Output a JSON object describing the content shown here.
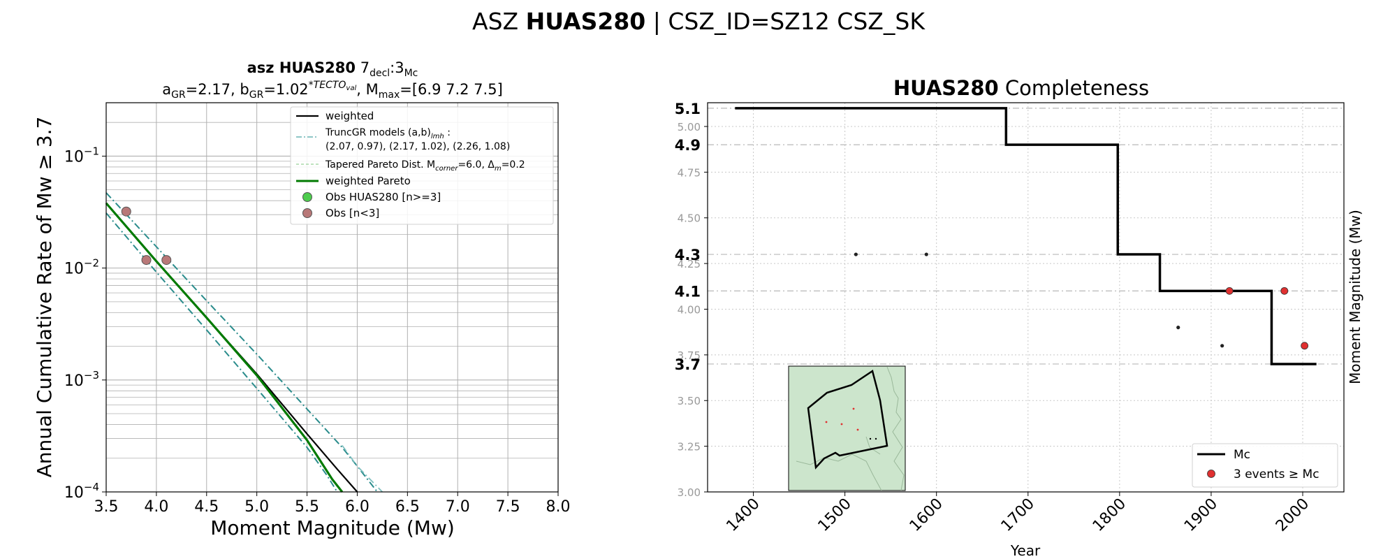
{
  "figure": {
    "suptitle_prefix": "ASZ ",
    "suptitle_bold": "HUAS280",
    "suptitle_suffix": " | CSZ_ID=SZ12 CSZ_SK"
  },
  "chart_data": [
    {
      "type": "line",
      "title_line1": {
        "bold": "asz HUAS280",
        "pre": "  7",
        "sub1": "decl",
        "mid": ":3",
        "sub2": "Mc"
      },
      "title_line2": {
        "a": "a",
        "a_sub": "GR",
        "a_val": "=2.17,  ",
        "b": "b",
        "b_sub": "GR",
        "b_val": "=1.02",
        "b_sup": "*TECTO",
        "b_supsub": "val",
        "m": ", M",
        "m_sub": "max",
        "m_val": "=[6.9 7.2 7.5]"
      },
      "xlabel": "Moment Magnitude (Mw)",
      "ylabel": "Annual Cumulative Rate of Mw  ≥  3.7",
      "xlim": [
        3.5,
        8.0
      ],
      "ylim": [
        0.0001,
        0.3
      ],
      "yscale": "log",
      "grid": true,
      "xticks": [
        "3.5",
        "4.0",
        "4.5",
        "5.0",
        "5.5",
        "6.0",
        "6.5",
        "7.0",
        "7.5",
        "8.0"
      ],
      "yticks": [
        {
          "base": "10",
          "exp": "−4",
          "value": 0.0001
        },
        {
          "base": "10",
          "exp": "−3",
          "value": 0.001
        },
        {
          "base": "10",
          "exp": "−2",
          "value": 0.01
        },
        {
          "base": "10",
          "exp": "−1",
          "value": 0.1
        }
      ],
      "legend": {
        "placement": "top-right",
        "weighted": "weighted",
        "trunc_line1": "TruncGR models (a,b)",
        "trunc_sub": "lmh",
        "trunc_line1_end": " :",
        "trunc_line2": " (2.07, 0.97), (2.17, 1.02), (2.26, 1.08)",
        "tapered_pre": "Tapered Pareto Dist. M",
        "tapered_sub": "corner",
        "tapered_mid": "=6.0, Δ",
        "tapered_sub2": "m",
        "tapered_end": "=0.2",
        "weighted_pareto": "weighted Pareto",
        "obs_good": "Obs HUAS280 [n>=3]",
        "obs_bad": "Obs [n<3]"
      },
      "colors": {
        "weighted": "#000000",
        "truncgr": "#2a8c8c",
        "truncgr_light": "#7fbfbf",
        "tapered": "#a8d8a8",
        "weighted_pareto": "#007a00",
        "obs_good": "#4dcc4d",
        "obs_bad": "#b87878"
      },
      "series": [
        {
          "name": "weighted",
          "style": "solid",
          "x": [
            3.5,
            4.0,
            4.5,
            5.0,
            5.5,
            5.8,
            6.0
          ],
          "y": [
            0.038,
            0.0115,
            0.0036,
            0.00113,
            0.00033,
            0.00016,
            0.0001
          ]
        },
        {
          "name": "weighted Pareto",
          "style": "solid",
          "x": [
            3.5,
            4.0,
            4.5,
            5.0,
            5.5,
            5.75,
            5.85
          ],
          "y": [
            0.038,
            0.0115,
            0.0036,
            0.0011,
            0.00029,
            0.00013,
            0.0001
          ]
        },
        {
          "style": "dashdot",
          "x": [
            3.5,
            4.0,
            4.5,
            5.0,
            5.5,
            5.85,
            6.0,
            6.2
          ],
          "y": [
            0.047,
            0.0155,
            0.0051,
            0.0017,
            0.00055,
            0.00025,
            0.00017,
            0.0001
          ]
        },
        {
          "style": "dashdot",
          "x": [
            3.5,
            4.0,
            4.5,
            5.0,
            5.5,
            5.7,
            5.8
          ],
          "y": [
            0.031,
            0.0092,
            0.0028,
            0.00084,
            0.00025,
            0.00014,
            0.0001
          ]
        },
        {
          "style": "dashdot_light",
          "x": [
            5.85,
            6.0,
            6.25
          ],
          "y": [
            0.00026,
            0.00017,
            0.0001
          ]
        }
      ],
      "observations": [
        {
          "x": 3.7,
          "y": 0.032
        },
        {
          "x": 3.9,
          "y": 0.0118
        },
        {
          "x": 4.1,
          "y": 0.0118
        }
      ]
    },
    {
      "type": "line",
      "title_bold": "HUAS280",
      "title_rest": " Completeness",
      "xlabel": "Year",
      "ylabel": "Moment Magnitude (Mw)",
      "xlim": [
        1350,
        2045
      ],
      "ylim": [
        3.0,
        5.13
      ],
      "grid": true,
      "xticks": [
        "1400",
        "1500",
        "1600",
        "1700",
        "1800",
        "1900",
        "2000"
      ],
      "yticks_small": [
        "3.00",
        "3.25",
        "3.50",
        "3.75",
        "4.00",
        "4.25",
        "4.50",
        "4.75",
        "5.00"
      ],
      "yticks_bold": [
        "3.7",
        "4.1",
        "4.3",
        "4.9",
        "5.1"
      ],
      "legend": {
        "placement": "bottom-right",
        "mc": "Mc",
        "events": "3 events  ≥  Mc"
      },
      "mc_step": {
        "x": [
          1380,
          1676,
          1676,
          1798,
          1798,
          1844,
          1844,
          1966,
          1966,
          2015
        ],
        "y": [
          5.1,
          5.1,
          4.9,
          4.9,
          4.3,
          4.3,
          4.1,
          4.1,
          3.7,
          3.7
        ]
      },
      "events_small": [
        {
          "x": 1512,
          "y": 4.3
        },
        {
          "x": 1589,
          "y": 4.3
        },
        {
          "x": 1864,
          "y": 3.9
        },
        {
          "x": 1912,
          "y": 3.8
        }
      ],
      "events_red": [
        {
          "x": 1920,
          "y": 4.1
        },
        {
          "x": 1980,
          "y": 4.1
        },
        {
          "x": 2002,
          "y": 3.8
        }
      ],
      "colors": {
        "mc": "#000000",
        "event": "#e03030",
        "inset_fill": "#cce5cc"
      }
    }
  ]
}
